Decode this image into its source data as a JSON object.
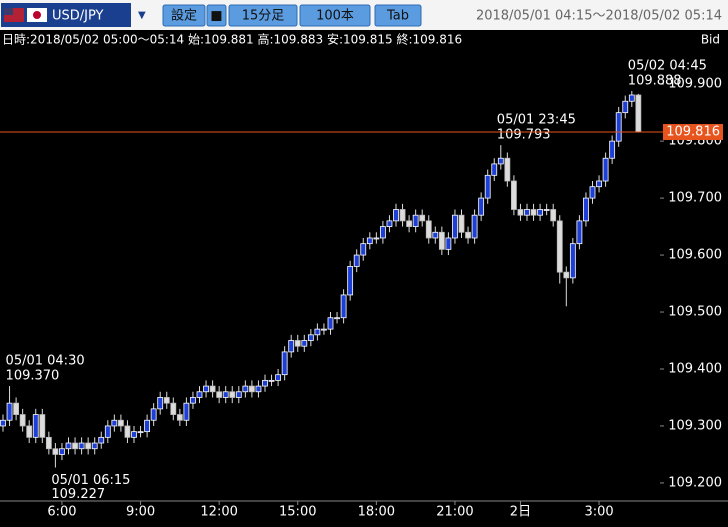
{
  "header": {
    "pair": "USD/JPY",
    "buttons": [
      "設定",
      "■",
      "15分足",
      "100本",
      "Tab"
    ],
    "range": "2018/05/01 04:15～2018/05/02 05:14"
  },
  "info": {
    "text": "日時:2018/05/02 05:00～05:14 始:109.881 高:109.883 安:109.815 終:109.816",
    "side": "Bid"
  },
  "chart_data": {
    "type": "candlestick",
    "open": [
      109.3,
      109.31,
      109.34,
      109.32,
      109.3,
      109.28,
      109.32,
      109.28,
      109.26,
      109.25,
      109.26,
      109.27,
      109.26,
      109.27,
      109.26,
      109.27,
      109.28,
      109.3,
      109.31,
      109.3,
      109.28,
      109.29,
      109.29,
      109.31,
      109.33,
      109.35,
      109.34,
      109.32,
      109.31,
      109.34,
      109.35,
      109.36,
      109.37,
      109.36,
      109.35,
      109.36,
      109.35,
      109.36,
      109.37,
      109.36,
      109.37,
      109.38,
      109.38,
      109.39,
      109.43,
      109.45,
      109.44,
      109.45,
      109.46,
      109.47,
      109.47,
      109.49,
      109.49,
      109.53,
      109.58,
      109.6,
      109.62,
      109.63,
      109.63,
      109.65,
      109.66,
      109.68,
      109.66,
      109.65,
      109.67,
      109.66,
      109.63,
      109.64,
      109.61,
      109.63,
      109.67,
      109.64,
      109.63,
      109.67,
      109.7,
      109.74,
      109.76,
      109.77,
      109.73,
      109.68,
      109.67,
      109.68,
      109.67,
      109.68,
      109.68,
      109.66,
      109.57,
      109.56,
      109.62,
      109.66,
      109.7,
      109.72,
      109.73,
      109.77,
      109.8,
      109.85,
      109.87,
      109.881
    ],
    "high": [
      109.32,
      109.37,
      109.35,
      109.33,
      109.31,
      109.33,
      109.33,
      109.29,
      109.27,
      109.27,
      109.28,
      109.28,
      109.28,
      109.28,
      109.28,
      109.29,
      109.31,
      109.32,
      109.32,
      109.31,
      109.3,
      109.3,
      109.32,
      109.34,
      109.36,
      109.36,
      109.35,
      109.33,
      109.35,
      109.36,
      109.37,
      109.38,
      109.38,
      109.37,
      109.37,
      109.37,
      109.37,
      109.38,
      109.38,
      109.38,
      109.39,
      109.39,
      109.4,
      109.44,
      109.46,
      109.46,
      109.46,
      109.47,
      109.48,
      109.48,
      109.5,
      109.5,
      109.54,
      109.59,
      109.61,
      109.63,
      109.64,
      109.64,
      109.66,
      109.67,
      109.69,
      109.69,
      109.67,
      109.68,
      109.68,
      109.67,
      109.65,
      109.65,
      109.64,
      109.68,
      109.68,
      109.65,
      109.68,
      109.71,
      109.75,
      109.77,
      109.793,
      109.78,
      109.74,
      109.69,
      109.69,
      109.69,
      109.69,
      109.69,
      109.69,
      109.67,
      109.58,
      109.63,
      109.67,
      109.71,
      109.73,
      109.74,
      109.78,
      109.81,
      109.86,
      109.88,
      109.888,
      109.883
    ],
    "low": [
      109.29,
      109.3,
      109.31,
      109.29,
      109.27,
      109.27,
      109.27,
      109.25,
      109.227,
      109.24,
      109.25,
      109.25,
      109.25,
      109.25,
      109.25,
      109.26,
      109.27,
      109.29,
      109.29,
      109.27,
      109.27,
      109.28,
      109.28,
      109.3,
      109.32,
      109.33,
      109.31,
      109.3,
      109.3,
      109.33,
      109.34,
      109.35,
      109.35,
      109.34,
      109.34,
      109.34,
      109.34,
      109.35,
      109.35,
      109.35,
      109.36,
      109.37,
      109.37,
      109.38,
      109.42,
      109.43,
      109.43,
      109.44,
      109.45,
      109.46,
      109.46,
      109.48,
      109.48,
      109.52,
      109.57,
      109.59,
      109.61,
      109.62,
      109.62,
      109.64,
      109.65,
      109.65,
      109.64,
      109.64,
      109.65,
      109.62,
      109.62,
      109.6,
      109.6,
      109.62,
      109.63,
      109.62,
      109.62,
      109.66,
      109.69,
      109.73,
      109.75,
      109.72,
      109.67,
      109.66,
      109.66,
      109.66,
      109.66,
      109.67,
      109.65,
      109.55,
      109.51,
      109.55,
      109.61,
      109.65,
      109.69,
      109.71,
      109.72,
      109.76,
      109.79,
      109.84,
      109.86,
      109.815
    ],
    "close": [
      109.31,
      109.34,
      109.32,
      109.3,
      109.28,
      109.32,
      109.28,
      109.26,
      109.25,
      109.26,
      109.27,
      109.26,
      109.27,
      109.26,
      109.27,
      109.28,
      109.3,
      109.31,
      109.3,
      109.28,
      109.29,
      109.29,
      109.31,
      109.33,
      109.35,
      109.34,
      109.32,
      109.31,
      109.34,
      109.35,
      109.36,
      109.37,
      109.36,
      109.35,
      109.36,
      109.35,
      109.36,
      109.37,
      109.36,
      109.37,
      109.38,
      109.38,
      109.39,
      109.43,
      109.45,
      109.44,
      109.45,
      109.46,
      109.47,
      109.47,
      109.49,
      109.49,
      109.53,
      109.58,
      109.6,
      109.62,
      109.63,
      109.63,
      109.65,
      109.66,
      109.68,
      109.66,
      109.65,
      109.67,
      109.66,
      109.63,
      109.64,
      109.61,
      109.63,
      109.67,
      109.64,
      109.63,
      109.67,
      109.7,
      109.74,
      109.76,
      109.77,
      109.73,
      109.68,
      109.67,
      109.68,
      109.67,
      109.68,
      109.68,
      109.66,
      109.57,
      109.56,
      109.62,
      109.66,
      109.7,
      109.72,
      109.73,
      109.77,
      109.8,
      109.85,
      109.87,
      109.881,
      109.816
    ],
    "up_color": "#1d3fd6",
    "down_color": "#dcdcdc",
    "ylim": [
      109.17,
      109.96
    ],
    "yticks": [
      {
        "value": 109.2,
        "label": "109.200"
      },
      {
        "value": 109.3,
        "label": "109.300"
      },
      {
        "value": 109.4,
        "label": "109.400"
      },
      {
        "value": 109.5,
        "label": "109.500"
      },
      {
        "value": 109.6,
        "label": "109.600"
      },
      {
        "value": 109.7,
        "label": "109.700"
      },
      {
        "value": 109.8,
        "label": "109.800"
      },
      {
        "value": 109.9,
        "label": "109.900"
      }
    ],
    "xticks": [
      {
        "value": 9,
        "label": "6:00"
      },
      {
        "value": 21,
        "label": "9:00"
      },
      {
        "value": 33,
        "label": "12:00"
      },
      {
        "value": 45,
        "label": "15:00"
      },
      {
        "value": 57,
        "label": "18:00"
      },
      {
        "value": 69,
        "label": "21:00"
      },
      {
        "value": 79,
        "label": "2日"
      },
      {
        "value": 91,
        "label": "3:00"
      }
    ],
    "annotations": [
      {
        "text": "05/01 04:30",
        "value": 109.37,
        "label": "109.370"
      },
      {
        "text": "05/01 06:15",
        "value": 109.227,
        "label": "109.227"
      },
      {
        "text": "05/01 23:45",
        "value": 109.793,
        "label": "109.793"
      },
      {
        "text": "05/02 04:45",
        "value": 109.888,
        "label": "109.888"
      }
    ],
    "last": {
      "value": 109.816,
      "label": "109.816",
      "color": "#e8541e"
    }
  }
}
